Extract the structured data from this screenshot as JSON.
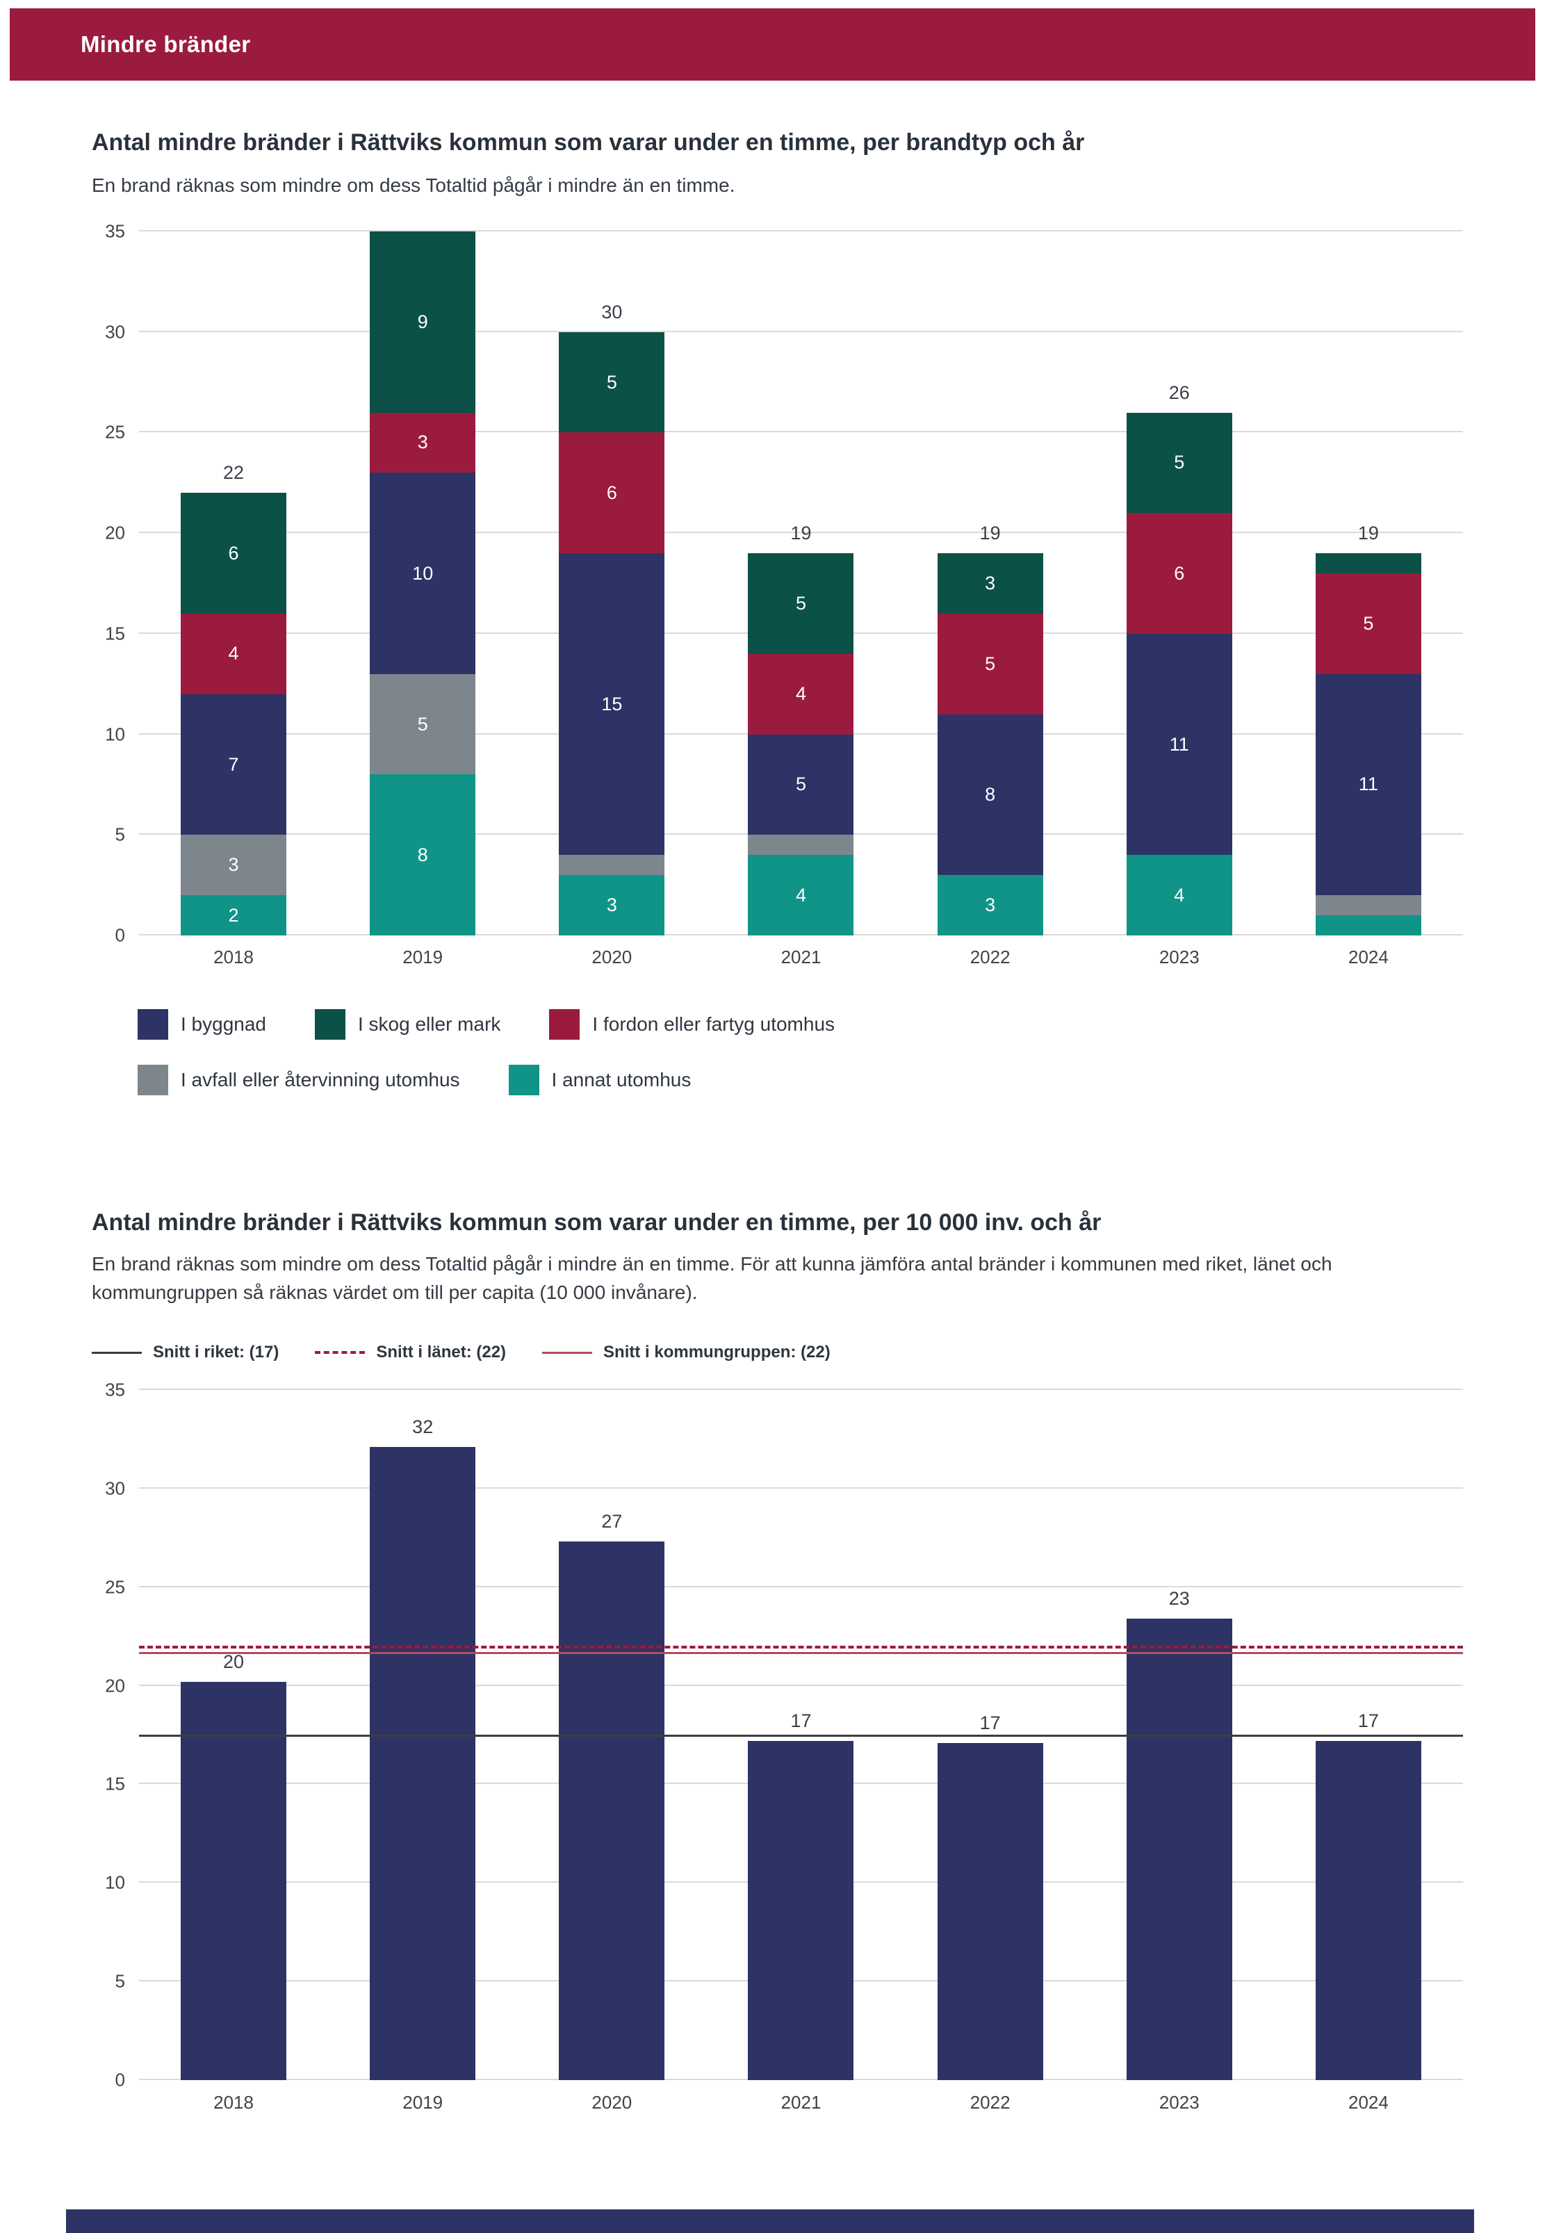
{
  "header": {
    "title": "Mindre bränder",
    "bg_color": "#9b1b3e",
    "text_color": "#ffffff"
  },
  "colors": {
    "navy": "#2d3364",
    "green": "#0b5147",
    "maroon": "#9b1b3e",
    "gray": "#7e868d",
    "teal": "#109488",
    "grid": "#dadada",
    "bottom_strip": "#2d3364"
  },
  "chart_data": [
    {
      "type": "bar",
      "stacked": true,
      "title": "Antal mindre bränder i Rättviks kommun som varar under en timme, per brandtyp och år",
      "subtitle": "En brand räknas som mindre om dess Totaltid pågår i mindre än en timme.",
      "categories": [
        "2018",
        "2019",
        "2020",
        "2021",
        "2022",
        "2023",
        "2024"
      ],
      "series": [
        {
          "name": "I annat utomhus",
          "color": "#109488",
          "values": [
            2,
            8,
            3,
            4,
            3,
            4,
            1
          ]
        },
        {
          "name": "I avfall eller återvinning utomhus",
          "color": "#7e868d",
          "values": [
            3,
            5,
            1,
            1,
            0,
            0,
            1
          ]
        },
        {
          "name": "I byggnad",
          "color": "#2d3364",
          "values": [
            7,
            10,
            15,
            5,
            8,
            11,
            11
          ]
        },
        {
          "name": "I fordon eller fartyg utomhus",
          "color": "#9b1b3e",
          "values": [
            4,
            3,
            6,
            4,
            5,
            6,
            5
          ]
        },
        {
          "name": "I skog eller mark",
          "color": "#0b5147",
          "values": [
            6,
            9,
            5,
            5,
            3,
            5,
            1
          ]
        }
      ],
      "totals": [
        22,
        null,
        30,
        19,
        19,
        26,
        19
      ],
      "legend_order": [
        "I byggnad",
        "I skog eller mark",
        "I fordon eller fartyg utomhus",
        "I avfall eller återvinning utomhus",
        "I annat utomhus"
      ],
      "ylim": [
        0,
        35
      ],
      "ytick_step": 5,
      "grid": true,
      "legend_position": "bottom"
    },
    {
      "type": "bar",
      "stacked": false,
      "title": "Antal mindre bränder i Rättviks kommun som varar under en timme, per 10 000 inv. och år",
      "subtitle": "En brand räknas som mindre om dess Totaltid pågår i mindre än en timme. För att kunna jämföra antal bränder i kommunen med riket, länet och kommungruppen så räknas värdet om till per capita (10 000 invånare).",
      "categories": [
        "2018",
        "2019",
        "2020",
        "2021",
        "2022",
        "2023",
        "2024"
      ],
      "values": [
        20.2,
        32.1,
        27.3,
        17.2,
        17.1,
        23.4,
        17.2
      ],
      "labels": [
        20,
        32,
        27,
        17,
        17,
        23,
        17
      ],
      "bar_color": "#2d3364",
      "reference_lines": [
        {
          "name": "Snitt i riket: (17)",
          "value": 17.4,
          "style": "solid",
          "color": "#3d3d3d"
        },
        {
          "name": "Snitt i länet: (22)",
          "value": 21.9,
          "style": "dashed",
          "color": "#9b1b3e"
        },
        {
          "name": "Snitt i kommungruppen: (22)",
          "value": 21.6,
          "style": "solid",
          "color": "#b8495e"
        }
      ],
      "ylim": [
        0,
        35
      ],
      "ytick_step": 5,
      "grid": true,
      "legend_position": "top"
    }
  ]
}
